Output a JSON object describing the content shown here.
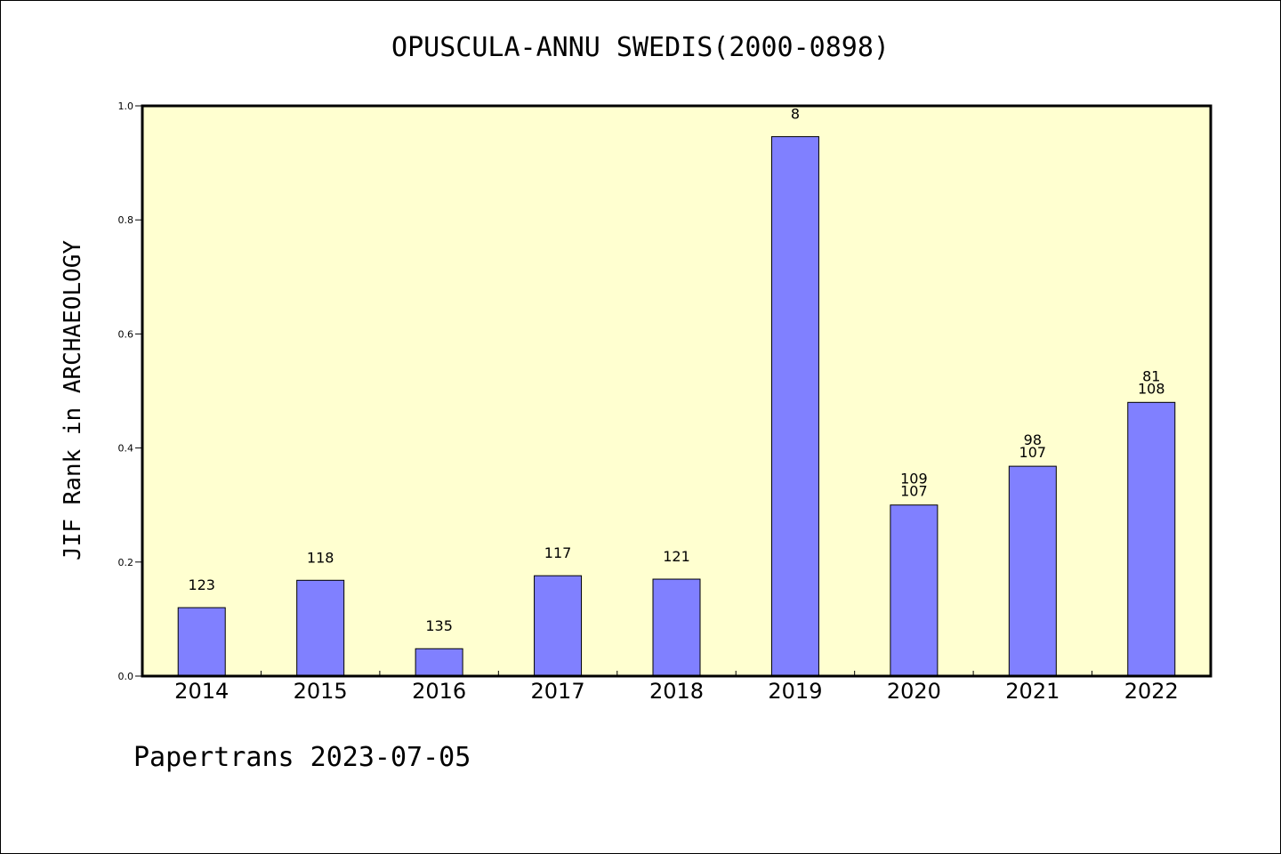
{
  "chart_data": {
    "type": "bar",
    "title": "OPUSCULA-ANNU SWEDIS(2000-0898)",
    "ylabel": "JIF Rank in ARCHAEOLOGY",
    "xlabel": "",
    "ylim": [
      0,
      1.0
    ],
    "yticks": [
      "0.0",
      "0.2",
      "0.4",
      "0.6",
      "0.8",
      "1.0"
    ],
    "categories": [
      "2014",
      "2015",
      "2016",
      "2017",
      "2018",
      "2019",
      "2020",
      "2021",
      "2022"
    ],
    "values": [
      0.12,
      0.168,
      0.048,
      0.176,
      0.17,
      0.946,
      0.3,
      0.368,
      0.48
    ],
    "labels": [
      [
        "123"
      ],
      [
        "118"
      ],
      [
        "135"
      ],
      [
        "117"
      ],
      [
        "121"
      ],
      [
        "8"
      ],
      [
        "109",
        "107"
      ],
      [
        "98",
        "107"
      ],
      [
        "81",
        "108"
      ]
    ],
    "bar_color": "#8080ff",
    "plot_background": "#ffffd0",
    "grid": false
  },
  "footer": "Papertrans 2023-07-05"
}
